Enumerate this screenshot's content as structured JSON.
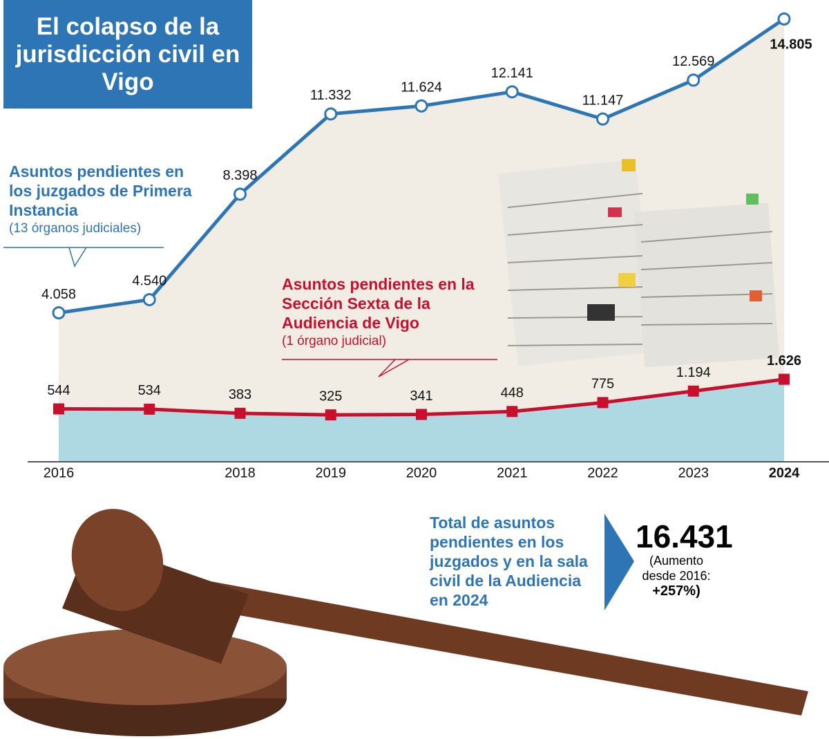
{
  "chart_data": {
    "type": "line",
    "title": "El colapso de la jurisdicción civil en Vigo",
    "categories": [
      "2016",
      null,
      "2018",
      "2019",
      "2020",
      "2021",
      "2022",
      "2023",
      "2024"
    ],
    "series": [
      {
        "name": "Asuntos pendientes en los juzgados de Primera Instancia",
        "note": "(13 órganos judiciales)",
        "color": "#2e75b6",
        "values": [
          4058,
          4540,
          8398,
          11332,
          11624,
          12141,
          11147,
          12569,
          14805
        ],
        "value_labels": [
          "4.058",
          "4.540",
          "8.398",
          "11.332",
          "11.624",
          "12.141",
          "11.147",
          "12.569",
          "14.805"
        ]
      },
      {
        "name": "Asuntos pendientes en la Sección Sexta de la Audiencia de Vigo",
        "note": "(1 órgano judicial)",
        "color": "#c8102e",
        "values": [
          544,
          534,
          383,
          325,
          341,
          448,
          775,
          1194,
          1626
        ],
        "value_labels": [
          "544",
          "534",
          "383",
          "325",
          "341",
          "448",
          "775",
          "1.194",
          "1.626"
        ]
      }
    ],
    "ylim": [
      0,
      15000
    ],
    "total": {
      "text": "Total de asuntos pendientes en los juzgados y en la sala civil de la Audiencia en 2024",
      "value": "16.431",
      "note": "(Aumento desde 2016:",
      "change": "+257%)"
    }
  }
}
